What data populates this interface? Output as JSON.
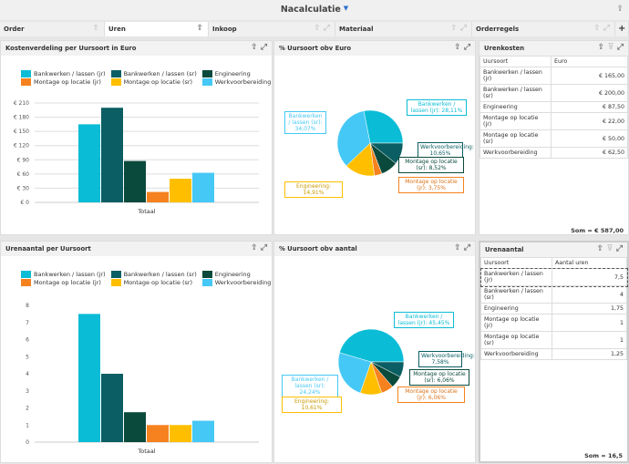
{
  "header": {
    "title": "Nacalculatie",
    "filter_icon": "filter-icon",
    "share_icon": "share-icon"
  },
  "tabs": [
    {
      "label": "Order"
    },
    {
      "label": "Uren",
      "active": true
    },
    {
      "label": "Inkoop"
    },
    {
      "label": "Materiaal"
    },
    {
      "label": "Orderregels"
    }
  ],
  "add_tab_label": "+",
  "colors": {
    "bankwerken_jr": "#0bbcd6",
    "bankwerken_sr": "#0b5e63",
    "engineering": "#0a4a3c",
    "montage_jr": "#f5821f",
    "montage_sr": "#ffbf00",
    "werkvoorbereiding": "#45c8f5"
  },
  "legend": [
    "Bankwerken / lassen (jr)",
    "Bankwerken / lassen (sr)",
    "Engineering",
    "Montage op locatie (jr)",
    "Montage op locatie (sr)",
    "Werkvoorbereiding"
  ],
  "chart_data": [
    {
      "type": "bar",
      "title": "Kostenverdeling per Uursoort in Euro",
      "categories": [
        "Totaal"
      ],
      "series": [
        {
          "name": "Bankwerken / lassen (jr)",
          "values": [
            165
          ]
        },
        {
          "name": "Bankwerken / lassen (sr)",
          "values": [
            200
          ]
        },
        {
          "name": "Engineering",
          "values": [
            87.5
          ]
        },
        {
          "name": "Montage op locatie (jr)",
          "values": [
            22
          ]
        },
        {
          "name": "Montage op locatie (sr)",
          "values": [
            50
          ]
        },
        {
          "name": "Werkvoorbereiding",
          "values": [
            62.5
          ]
        }
      ],
      "ylim": [
        0,
        210
      ],
      "yticks": [
        "€ 0",
        "€ 30",
        "€ 60",
        "€ 90",
        "€ 120",
        "€ 150",
        "€ 180",
        "€ 210"
      ],
      "grid": true,
      "legend": "top"
    },
    {
      "type": "pie",
      "title": "% Uursoort obv Euro",
      "slices": [
        {
          "label": "Bankwerken / lassen (jr): 28,11%",
          "value": 28.11
        },
        {
          "label": "Werkvoorbereiding: 10,65%",
          "value": 10.65
        },
        {
          "label": "Montage op locatie (sr): 8,52%",
          "value": 8.52
        },
        {
          "label": "Montage op locatie (jr): 3,75%",
          "value": 3.75
        },
        {
          "label": "Engineering: 14,91%",
          "value": 14.91
        },
        {
          "label": "Bankwerken / lassen (sr): 34,07%",
          "value": 34.07
        }
      ]
    },
    {
      "type": "bar",
      "title": "Urenaantal per Uursoort",
      "categories": [
        "Totaal"
      ],
      "series": [
        {
          "name": "Bankwerken / lassen (jr)",
          "values": [
            7.5
          ]
        },
        {
          "name": "Bankwerken / lassen (sr)",
          "values": [
            4
          ]
        },
        {
          "name": "Engineering",
          "values": [
            1.75
          ]
        },
        {
          "name": "Montage op locatie (jr)",
          "values": [
            1
          ]
        },
        {
          "name": "Montage op locatie (sr)",
          "values": [
            1
          ]
        },
        {
          "name": "Werkvoorbereiding",
          "values": [
            1.25
          ]
        }
      ],
      "ylim": [
        0,
        8
      ],
      "yticks": [
        "0",
        "1",
        "2",
        "3",
        "4",
        "5",
        "6",
        "7",
        "8"
      ],
      "grid": false,
      "legend": "top"
    },
    {
      "type": "pie",
      "title": "% Uursoort obv aantal",
      "slices": [
        {
          "label": "Bankwerken / lassen (jr): 45,45%",
          "value": 45.45
        },
        {
          "label": "Werkvoorbereiding: 7,58%",
          "value": 7.58
        },
        {
          "label": "Montage op locatie (sr): 6,06%",
          "value": 6.06
        },
        {
          "label": "Montage op locatie (jr): 6,06%",
          "value": 6.06
        },
        {
          "label": "Engineering: 10,61%",
          "value": 10.61
        },
        {
          "label": "Bankwerken / lassen (sr): 24,24%",
          "value": 24.24
        }
      ]
    }
  ],
  "urenkosten": {
    "title": "Urenkosten",
    "columns": [
      "Uursoort",
      "Euro"
    ],
    "rows": [
      [
        "Bankwerken / lassen (jr)",
        "€ 165,00"
      ],
      [
        "Bankwerken / lassen (sr)",
        "€ 200,00"
      ],
      [
        "Engineering",
        "€ 87,50"
      ],
      [
        "Montage op locatie (jr)",
        "€ 22,00"
      ],
      [
        "Montage op locatie (sr)",
        "€ 50,00"
      ],
      [
        "Werkvoorbereiding",
        "€ 62,50"
      ]
    ],
    "total": "Som = € 587,00"
  },
  "urenaantal": {
    "title": "Urenaantal",
    "columns": [
      "Uursoort",
      "Aantal uren"
    ],
    "rows": [
      [
        "Bankwerken / lassen (jr)",
        "7,5"
      ],
      [
        "Bankwerken / lassen (sr)",
        "4"
      ],
      [
        "Engineering",
        "1,75"
      ],
      [
        "Montage op locatie (jr)",
        "1"
      ],
      [
        "Montage op locatie (sr)",
        "1"
      ],
      [
        "Werkvoorbereiding",
        "1,25"
      ]
    ],
    "total": "Som = 16,5"
  }
}
